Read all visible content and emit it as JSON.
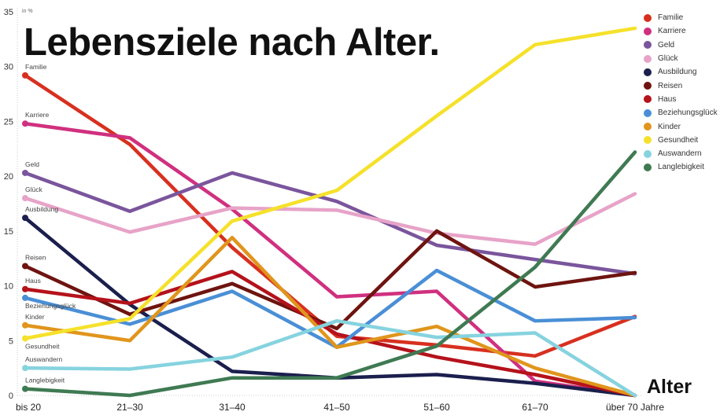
{
  "chart_data": {
    "type": "line",
    "title": "Lebensziele nach Alter.",
    "ylabel": "in %",
    "xlabel": "Alter",
    "ylim": [
      0,
      35
    ],
    "yticks": [
      0,
      5,
      10,
      15,
      20,
      25,
      30,
      35
    ],
    "grid": false,
    "legend_position": "right",
    "categories": [
      "bis 20",
      "21–30",
      "31–40",
      "41–50",
      "51–60",
      "61–70",
      "über 70 Jahre"
    ],
    "series": [
      {
        "name": "Familie",
        "color": "#d7301f",
        "values": [
          29.2,
          22.9,
          13.5,
          5.4,
          4.6,
          3.6,
          7.2
        ]
      },
      {
        "name": "Karriere",
        "color": "#d0307f",
        "values": [
          24.8,
          23.5,
          17.0,
          9.0,
          9.5,
          1.3,
          0
        ]
      },
      {
        "name": "Geld",
        "color": "#7a559c",
        "values": [
          20.3,
          16.8,
          20.3,
          17.7,
          13.7,
          12.4,
          11.1
        ]
      },
      {
        "name": "Glück",
        "color": "#e7a3c8",
        "values": [
          18.0,
          14.9,
          17.1,
          16.9,
          14.8,
          13.8,
          18.4
        ]
      },
      {
        "name": "Ausbildung",
        "color": "#1a1f4d",
        "values": [
          16.2,
          8.3,
          2.2,
          1.6,
          1.9,
          1.1,
          0
        ]
      },
      {
        "name": "Reisen",
        "color": "#6e1410",
        "values": [
          11.8,
          7.4,
          10.2,
          6.1,
          15.0,
          9.9,
          11.2
        ]
      },
      {
        "name": "Haus",
        "color": "#b5121b",
        "values": [
          9.7,
          8.4,
          11.3,
          5.6,
          3.5,
          1.9,
          0
        ]
      },
      {
        "name": "Beziehungsglück",
        "color": "#4a8fd6",
        "values": [
          8.9,
          6.5,
          9.5,
          4.4,
          11.4,
          6.8,
          7.1
        ]
      },
      {
        "name": "Kinder",
        "color": "#e0951c",
        "values": [
          6.4,
          5.0,
          14.4,
          4.4,
          6.3,
          2.5,
          0
        ]
      },
      {
        "name": "Gesundheit",
        "color": "#f5e12a",
        "values": [
          5.2,
          7.0,
          15.9,
          18.7,
          25.5,
          32.0,
          33.5
        ]
      },
      {
        "name": "Auswandern",
        "color": "#86d3df",
        "values": [
          2.5,
          2.4,
          3.5,
          6.8,
          5.3,
          5.7,
          0
        ]
      },
      {
        "name": "Langlebigkeit",
        "color": "#3f7a52",
        "values": [
          0.6,
          0,
          1.6,
          1.6,
          4.5,
          11.7,
          22.2
        ]
      }
    ]
  }
}
